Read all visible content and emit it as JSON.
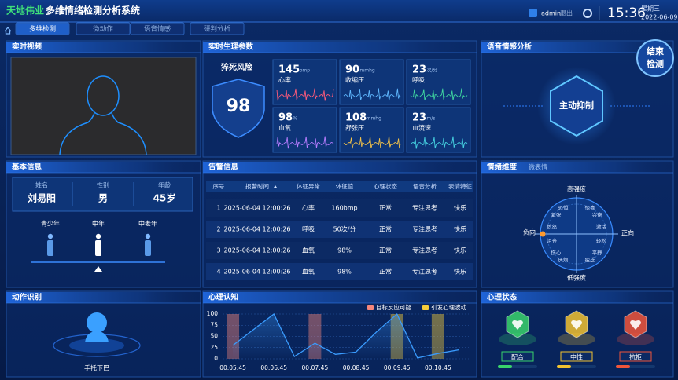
{
  "header": {
    "brand": "天地伟业",
    "title": "多维情绪检测分析系统",
    "user": "admin",
    "logout": "退出",
    "time": "15:36",
    "weekday": "星期三",
    "date": "2022-06-09"
  },
  "tabs": [
    "多维检测",
    "微动作",
    "语音情感",
    "研判分析"
  ],
  "end_button": [
    "结束",
    "检测"
  ],
  "video": {
    "title": "实时视频"
  },
  "vitals": {
    "title": "实时生理参数",
    "risk_label": "猝死风险",
    "risk_value": 98,
    "cards": [
      {
        "value": 145,
        "unit": "bmp",
        "label": "心率",
        "color": "#ff5a7a"
      },
      {
        "value": 90,
        "unit": "mmhg",
        "label": "收缩压",
        "color": "#5fb8ff"
      },
      {
        "value": 23,
        "unit": "次/分",
        "label": "呼吸",
        "color": "#3fd6a0"
      },
      {
        "value": 98,
        "unit": "%",
        "label": "血氧",
        "color": "#b77cff"
      },
      {
        "value": 108,
        "unit": "mmhg",
        "label": "舒张压",
        "color": "#f2c24a"
      },
      {
        "value": 23,
        "unit": "m/s",
        "label": "血流速",
        "color": "#45d0e0"
      }
    ]
  },
  "voice": {
    "title": "语音情感分析",
    "state": "主动抑制"
  },
  "basic": {
    "title": "基本信息",
    "fields": [
      {
        "label": "姓名",
        "value": "刘易阳"
      },
      {
        "label": "性别",
        "value": "男"
      },
      {
        "label": "年龄",
        "value": "45岁"
      }
    ],
    "age_groups": [
      "青少年",
      "中年",
      "中老年"
    ]
  },
  "alerts": {
    "title": "告警信息",
    "columns": [
      "序号",
      "报警时间",
      "体征异常",
      "体征值",
      "心理状态",
      "语音分析",
      "表情特征"
    ],
    "rows": [
      [
        1,
        "2025-06-04 12:00:26",
        "心率",
        "160bmp",
        "正常",
        "专注思考",
        "快乐"
      ],
      [
        2,
        "2025-06-04 12:00:26",
        "呼吸",
        "50次/分",
        "正常",
        "专注思考",
        "快乐"
      ],
      [
        3,
        "2025-06-04 12:00:26",
        "血氧",
        "98%",
        "正常",
        "专注思考",
        "快乐"
      ],
      [
        4,
        "2025-06-04 12:00:26",
        "血氧",
        "98%",
        "正常",
        "专注思考",
        "快乐"
      ]
    ]
  },
  "emotion": {
    "title": "情绪维度",
    "subtitle": "微表情",
    "axes": {
      "top": "高强度",
      "bottom": "低强度",
      "left": "负向",
      "right": "正向"
    },
    "words": [
      "恐惧",
      "惊喜",
      "紧张",
      "兴奋",
      "愤怒",
      "激活",
      "沮丧",
      "轻松",
      "伤心",
      "平静",
      "厌烦",
      "疲乏"
    ]
  },
  "action": {
    "title": "动作识别",
    "label": "手托下巴"
  },
  "chart_data": {
    "type": "line",
    "title": "心理认知",
    "categories": [
      "00:05:45",
      null,
      "00:06:45",
      null,
      "00:07:45",
      null,
      "00:08:45",
      null,
      "00:09:45",
      null,
      "00:10:45",
      null
    ],
    "values": [
      30,
      65,
      100,
      5,
      35,
      10,
      15,
      60,
      100,
      2,
      12,
      20
    ],
    "color": "#3a9cff",
    "series": [
      {
        "name": "目标反应可疑",
        "color": "#f4877c",
        "values": [
          100,
          null,
          null,
          null,
          100,
          null,
          null,
          null,
          null,
          null,
          null,
          null
        ]
      },
      {
        "name": "引发心理波动",
        "color": "#f5cc3a",
        "values": [
          null,
          null,
          null,
          null,
          null,
          null,
          null,
          null,
          100,
          null,
          100,
          null
        ]
      }
    ],
    "ylim": [
      0,
      100
    ],
    "yticks": [
      0,
      25,
      50,
      75,
      100
    ],
    "grid": true
  },
  "psych": {
    "title": "心理状态",
    "states": [
      {
        "label": "配合",
        "color": "#39d36b"
      },
      {
        "label": "中性",
        "color": "#f2c230"
      },
      {
        "label": "抗拒",
        "color": "#f0553a"
      }
    ]
  }
}
